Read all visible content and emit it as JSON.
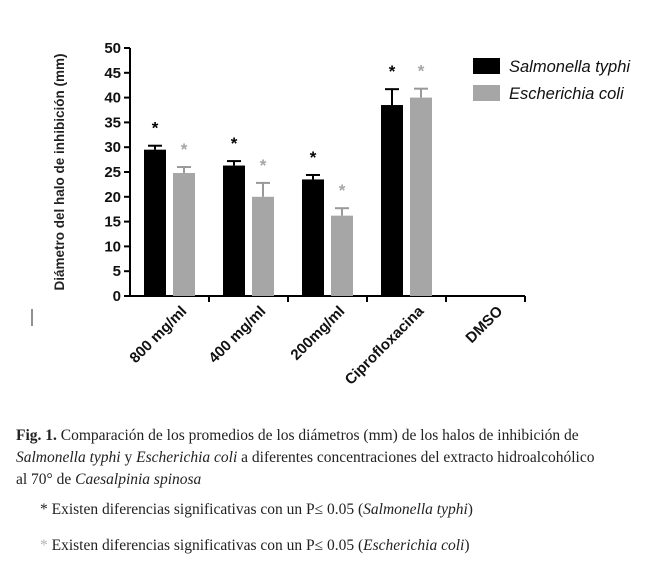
{
  "chart_data": {
    "type": "bar",
    "ylabel": "Diámetro del halo de inhibición (mm)",
    "xlabel": "",
    "ylim": [
      0,
      50
    ],
    "yticks": [
      "0",
      "5",
      "10",
      "15",
      "20",
      "25",
      "30",
      "35",
      "40",
      "45",
      "50"
    ],
    "categories": [
      "800 mg/ml",
      "400 mg/ml",
      "200mg/ml",
      "Ciprofloxacina",
      "DMSO"
    ],
    "series": [
      {
        "name": "Salmonella typhi",
        "color": "#000000",
        "values": [
          29.5,
          26.3,
          23.5,
          38.5,
          0
        ],
        "errors": [
          0.8,
          0.9,
          0.9,
          3.2,
          0
        ],
        "significant": [
          true,
          true,
          true,
          true,
          false
        ]
      },
      {
        "name": "Escherichia coli",
        "color": "#a6a6a6",
        "values": [
          24.8,
          20.0,
          16.2,
          40.0,
          0
        ],
        "errors": [
          1.2,
          2.8,
          1.5,
          1.8,
          0
        ],
        "significant": [
          true,
          true,
          true,
          true,
          false
        ]
      }
    ],
    "marker": "*",
    "grid": false,
    "legend_position": "top-right"
  },
  "caption": {
    "fig_label": "Fig. 1.",
    "line1": "Comparación de los promedios de los diámetros (mm) de los halos de inhibición de",
    "species1": "Salmonella typhi",
    "and": "y",
    "species2": "Escherichia coli",
    "line2_rest": "a diferentes concentraciones del extracto hidroalcohólico",
    "line3_start": "al 70° de",
    "plant": "Caesalpinia spinosa"
  },
  "notes": {
    "star": "*",
    "text": "Existen diferencias significativas con un P≤ 0.05 (",
    "species1": "Salmonella typhi",
    "species2": "Escherichia coli",
    "close": ")"
  }
}
